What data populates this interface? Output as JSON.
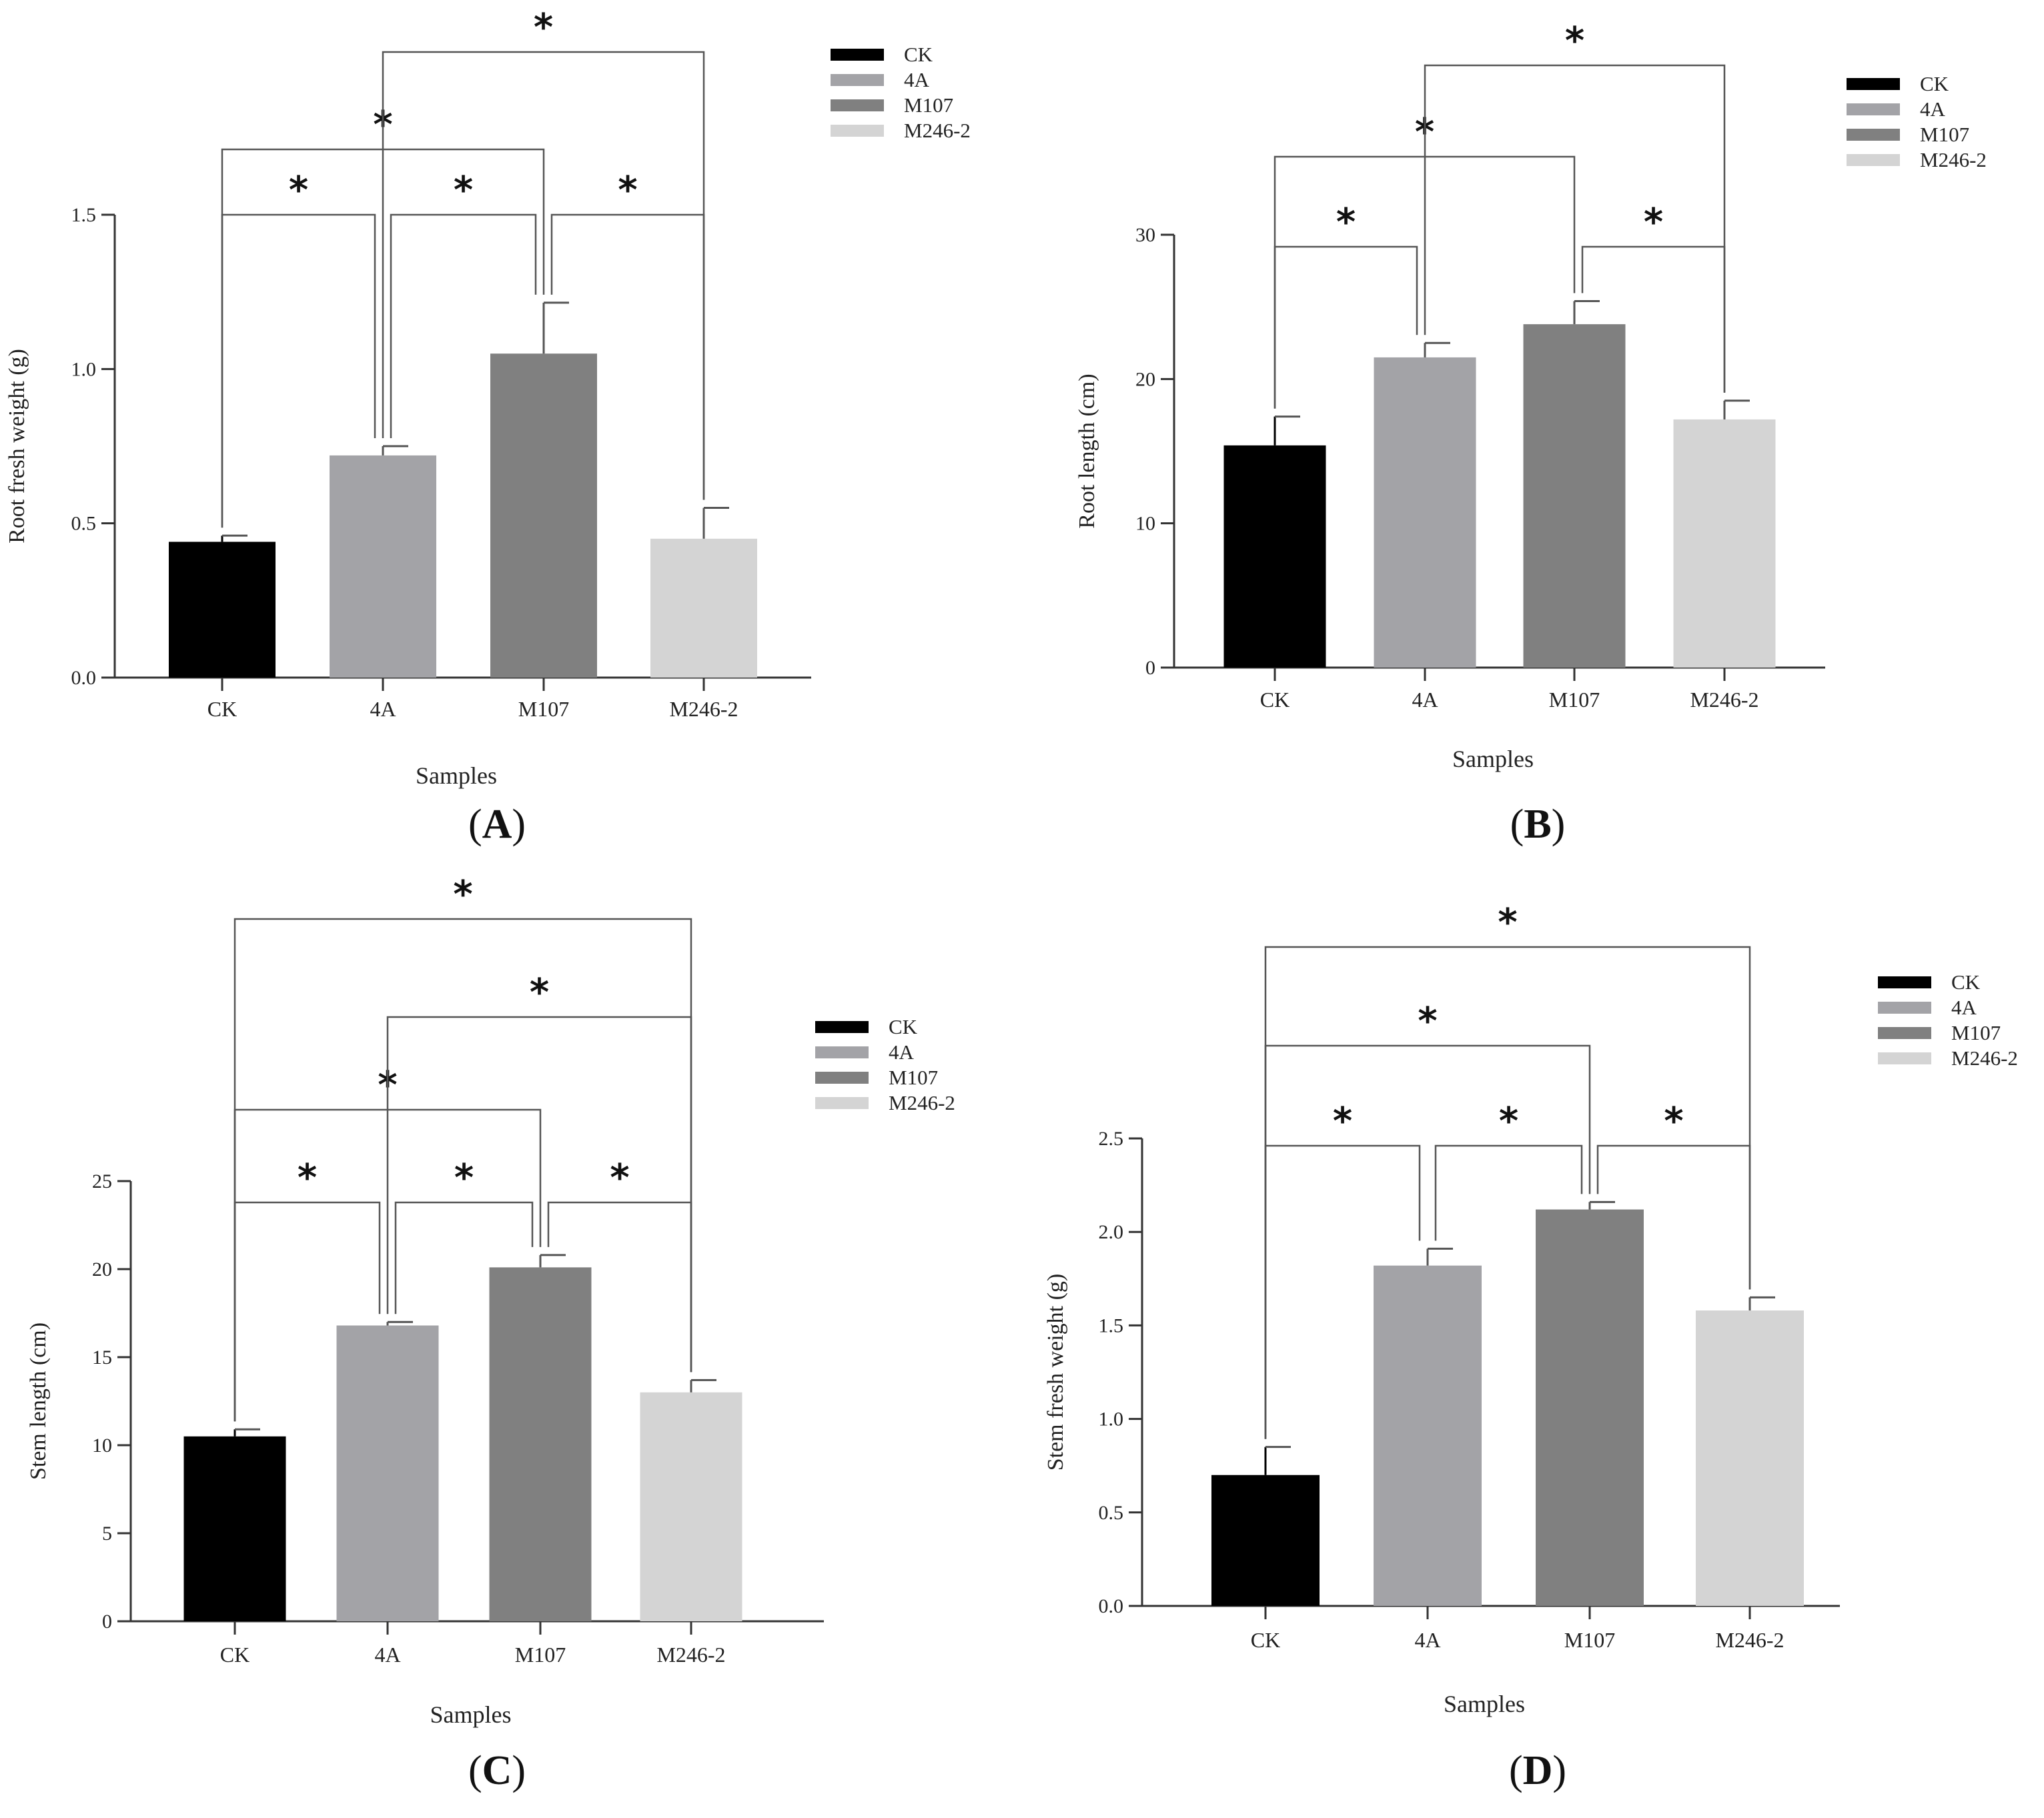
{
  "figure": {
    "title": ""
  },
  "chart_data": [
    {
      "type": "bar",
      "panel": "A",
      "panel_text": [
        "(",
        "A",
        ")"
      ],
      "ylabel": "Root fresh weight (g)",
      "xlabel": "Samples",
      "categories": [
        "CK",
        "4A",
        "M107",
        "M246-2"
      ],
      "values": [
        0.44,
        0.72,
        1.05,
        0.45
      ],
      "errors": [
        0.02,
        0.03,
        0.165,
        0.1
      ],
      "ylim": [
        0,
        1.5
      ],
      "yticks": [
        0,
        0.5,
        1.0,
        1.5
      ],
      "ytick_labels": [
        "0.0",
        "0.5",
        "1.0",
        "1.5"
      ],
      "colors": [
        "#000000",
        "#a3a3a7",
        "#808080",
        "#d4d4d4"
      ],
      "legend": [
        "CK",
        "4A",
        "M107",
        "M246-2"
      ],
      "legend_position": "top-right",
      "significance": [
        {
          "from": 0,
          "to": 1,
          "label": "*"
        },
        {
          "from": 1,
          "to": 2,
          "label": "*"
        },
        {
          "from": 2,
          "to": 3,
          "label": "*"
        },
        {
          "from": 0,
          "to": 2,
          "label": "*"
        },
        {
          "from": 1,
          "to": 3,
          "label": "*"
        }
      ]
    },
    {
      "type": "bar",
      "panel": "B",
      "panel_text": [
        "(",
        "B",
        ")"
      ],
      "ylabel": "Root length (cm)",
      "xlabel": "Samples",
      "categories": [
        "CK",
        "4A",
        "M107",
        "M246-2"
      ],
      "values": [
        15.4,
        21.5,
        23.8,
        17.2
      ],
      "errors": [
        2.0,
        1.0,
        1.6,
        1.3
      ],
      "ylim": [
        0,
        30
      ],
      "yticks": [
        0,
        10,
        20,
        30
      ],
      "ytick_labels": [
        "0",
        "10",
        "20",
        "30"
      ],
      "colors": [
        "#000000",
        "#a3a3a7",
        "#808080",
        "#d4d4d4"
      ],
      "legend": [
        "CK",
        "4A",
        "M107",
        "M246-2"
      ],
      "legend_position": "top-right",
      "significance": [
        {
          "from": 0,
          "to": 1,
          "label": "*"
        },
        {
          "from": 2,
          "to": 3,
          "label": "*"
        },
        {
          "from": 0,
          "to": 2,
          "label": "*"
        },
        {
          "from": 1,
          "to": 3,
          "label": "*"
        }
      ]
    },
    {
      "type": "bar",
      "panel": "C",
      "panel_text": [
        "(",
        "C",
        ")"
      ],
      "ylabel": "Stem length (cm)",
      "xlabel": "Samples",
      "categories": [
        "CK",
        "4A",
        "M107",
        "M246-2"
      ],
      "values": [
        10.5,
        16.8,
        20.1,
        13.0
      ],
      "errors": [
        0.4,
        0.2,
        0.7,
        0.7
      ],
      "ylim": [
        0,
        25
      ],
      "yticks": [
        0,
        5,
        10,
        15,
        20,
        25
      ],
      "ytick_labels": [
        "0",
        "5",
        "10",
        "15",
        "20",
        "25"
      ],
      "colors": [
        "#000000",
        "#a3a3a7",
        "#808080",
        "#d4d4d4"
      ],
      "legend": [
        "CK",
        "4A",
        "M107",
        "M246-2"
      ],
      "legend_position": "top-right",
      "significance": [
        {
          "from": 0,
          "to": 1,
          "label": "*"
        },
        {
          "from": 1,
          "to": 2,
          "label": "*"
        },
        {
          "from": 2,
          "to": 3,
          "label": "*"
        },
        {
          "from": 0,
          "to": 2,
          "label": "*"
        },
        {
          "from": 1,
          "to": 3,
          "label": "*"
        },
        {
          "from": 0,
          "to": 3,
          "label": "*"
        }
      ]
    },
    {
      "type": "bar",
      "panel": "D",
      "panel_text": [
        "(",
        "D",
        ")"
      ],
      "ylabel": "Stem fresh weight (g)",
      "xlabel": "Samples",
      "categories": [
        "CK",
        "4A",
        "M107",
        "M246-2"
      ],
      "values": [
        0.7,
        1.82,
        2.12,
        1.58
      ],
      "errors": [
        0.15,
        0.09,
        0.04,
        0.07
      ],
      "ylim": [
        0,
        2.5
      ],
      "yticks": [
        0,
        0.5,
        1.0,
        1.5,
        2.0,
        2.5
      ],
      "ytick_labels": [
        "0.0",
        "0.5",
        "1.0",
        "1.5",
        "2.0",
        "2.5"
      ],
      "colors": [
        "#000000",
        "#a3a3a7",
        "#808080",
        "#d4d4d4"
      ],
      "legend": [
        "CK",
        "4A",
        "M107",
        "M246-2"
      ],
      "legend_position": "top-right",
      "significance": [
        {
          "from": 0,
          "to": 1,
          "label": "*"
        },
        {
          "from": 1,
          "to": 2,
          "label": "*"
        },
        {
          "from": 2,
          "to": 3,
          "label": "*"
        },
        {
          "from": 0,
          "to": 2,
          "label": "*"
        },
        {
          "from": 0,
          "to": 3,
          "label": "*"
        }
      ]
    }
  ]
}
